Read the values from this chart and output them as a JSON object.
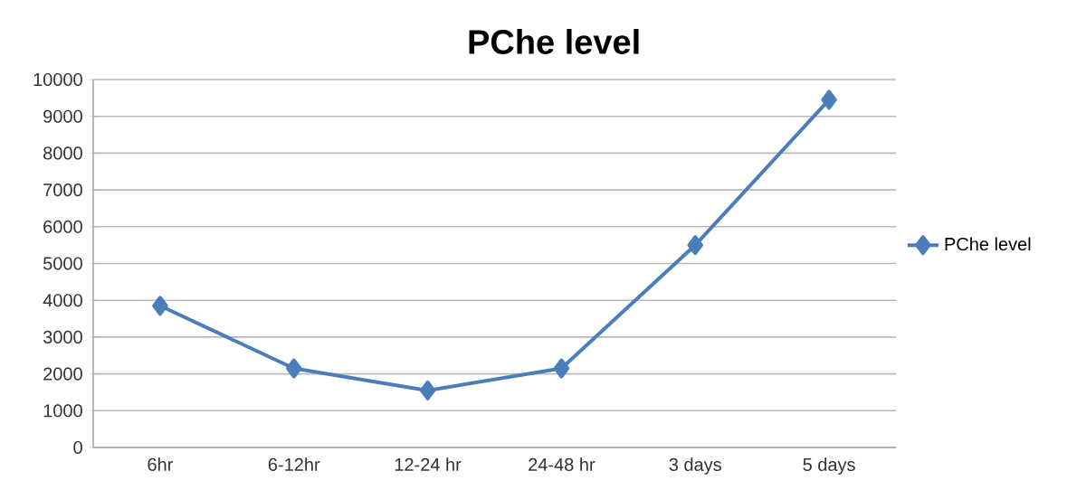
{
  "chart_data": {
    "type": "line",
    "title": "PChe level",
    "categories": [
      "6hr",
      "6-12hr",
      "12-24 hr",
      "24-48 hr",
      "3 days",
      "5 days"
    ],
    "series": [
      {
        "name": "PChe level",
        "color": "#4a7ebb",
        "values": [
          3850,
          2150,
          1550,
          2150,
          5500,
          9450
        ]
      }
    ],
    "ylim": [
      0,
      10000
    ],
    "yticks": [
      0,
      1000,
      2000,
      3000,
      4000,
      5000,
      6000,
      7000,
      8000,
      9000,
      10000
    ],
    "grid": "y",
    "legend": "right",
    "marker": "diamond",
    "line_style": "solid"
  }
}
